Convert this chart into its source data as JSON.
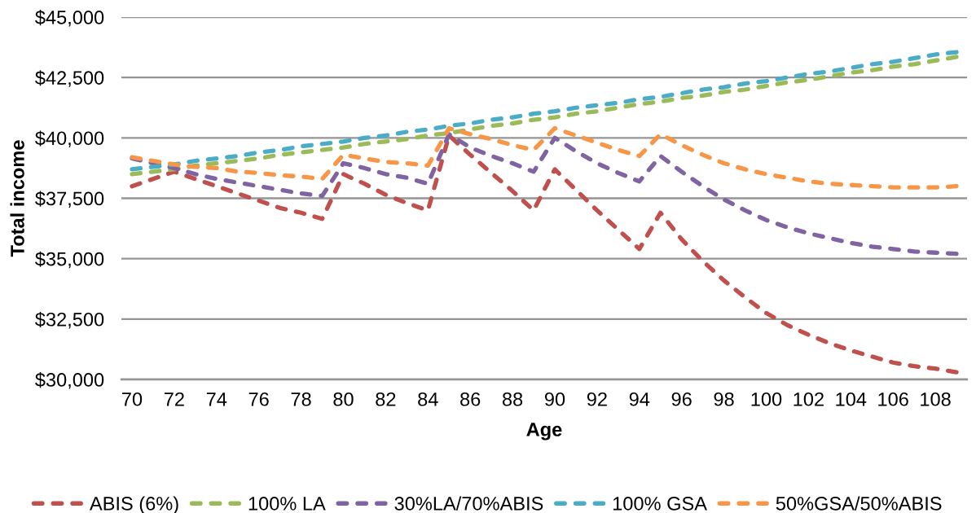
{
  "chart_data": {
    "type": "line",
    "xlabel": "Age",
    "ylabel": "Total income",
    "categories": [
      "70",
      null,
      "72",
      null,
      "74",
      null,
      "76",
      null,
      "78",
      null,
      "80",
      null,
      "82",
      null,
      "84",
      null,
      "86",
      null,
      "88",
      null,
      "90",
      null,
      "92",
      null,
      "94",
      null,
      "96",
      null,
      "98",
      null,
      "100",
      null,
      "102",
      null,
      "104",
      null,
      "106",
      null,
      "108",
      null
    ],
    "series": [
      {
        "name": "ABIS (6%)",
        "color": "#c0504d",
        "values": [
          38000,
          38300,
          38600,
          38300,
          38000,
          37700,
          37400,
          37100,
          36900,
          36650,
          38500,
          38100,
          37650,
          37300,
          37000,
          40100,
          39300,
          38550,
          37800,
          37000,
          38700,
          37850,
          37000,
          36200,
          35400,
          36900,
          35800,
          34900,
          34100,
          33400,
          32750,
          32250,
          31850,
          31500,
          31200,
          30950,
          30700,
          30550,
          30450,
          30300
        ]
      },
      {
        "name": "100% LA",
        "color": "#9bbb59",
        "values": [
          38500,
          38600,
          38700,
          38850,
          38950,
          39050,
          39150,
          39300,
          39400,
          39500,
          39600,
          39750,
          39850,
          39950,
          40100,
          40200,
          40350,
          40500,
          40600,
          40750,
          40850,
          41000,
          41100,
          41250,
          41400,
          41500,
          41650,
          41750,
          41900,
          42000,
          42150,
          42300,
          42400,
          42550,
          42700,
          42800,
          42950,
          43050,
          43200,
          43350
        ]
      },
      {
        "name": "30%LA/70%ABIS",
        "color": "#8064a2",
        "values": [
          39150,
          38950,
          38750,
          38500,
          38300,
          38150,
          38000,
          37850,
          37700,
          37600,
          38950,
          38750,
          38500,
          38350,
          38100,
          40150,
          39600,
          39250,
          38950,
          38600,
          40000,
          39450,
          38950,
          38550,
          38200,
          39250,
          38600,
          38000,
          37450,
          37000,
          36600,
          36300,
          36050,
          35850,
          35650,
          35500,
          35400,
          35300,
          35250,
          35200
        ]
      },
      {
        "name": "100% GSA",
        "color": "#4bacc6",
        "values": [
          38700,
          38800,
          38900,
          39050,
          39150,
          39250,
          39400,
          39500,
          39650,
          39750,
          39850,
          40000,
          40100,
          40250,
          40350,
          40500,
          40600,
          40750,
          40850,
          41000,
          41100,
          41250,
          41350,
          41450,
          41600,
          41700,
          41850,
          42000,
          42100,
          42250,
          42350,
          42500,
          42650,
          42750,
          42900,
          43050,
          43150,
          43300,
          43450,
          43550
        ]
      },
      {
        "name": "50%GSA/50%ABIS",
        "color": "#f79646",
        "values": [
          39200,
          39050,
          38900,
          38800,
          38750,
          38600,
          38550,
          38450,
          38400,
          38300,
          39300,
          39150,
          39000,
          38950,
          38850,
          40400,
          40150,
          39950,
          39700,
          39500,
          40400,
          40100,
          39800,
          39500,
          39250,
          40150,
          39700,
          39300,
          38950,
          38700,
          38500,
          38350,
          38200,
          38100,
          38050,
          38000,
          37950,
          37950,
          37950,
          38000
        ]
      }
    ],
    "ylim": [
      30000,
      45000
    ],
    "yticks": [
      {
        "value": 30000,
        "label": "$30,000"
      },
      {
        "value": 32500,
        "label": "$32,500"
      },
      {
        "value": 35000,
        "label": "$35,000"
      },
      {
        "value": 37500,
        "label": "$37,500"
      },
      {
        "value": 40000,
        "label": "$40,000"
      },
      {
        "value": 42500,
        "label": "$42,500"
      },
      {
        "value": 45000,
        "label": "$45,000"
      }
    ],
    "grid": "y",
    "legend": "bottom",
    "line_style": "dashed"
  }
}
